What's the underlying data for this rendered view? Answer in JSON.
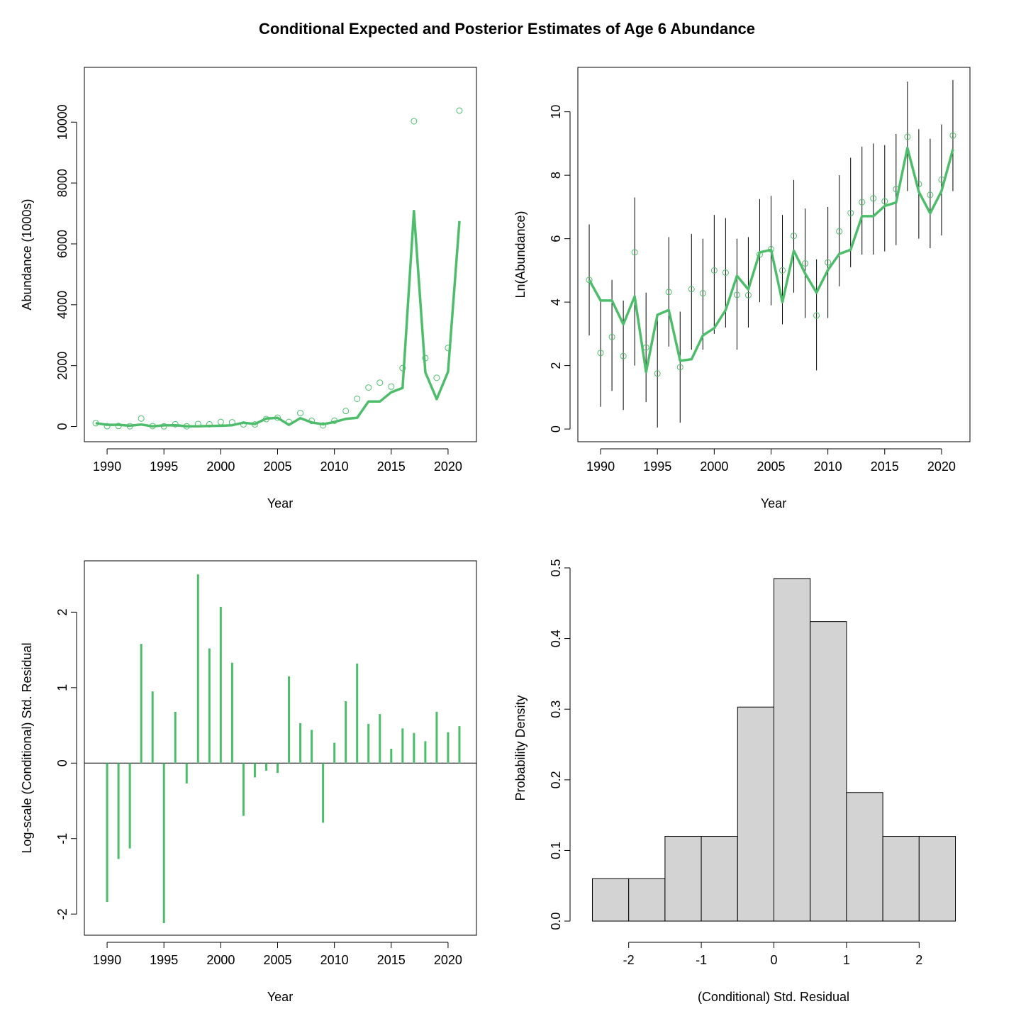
{
  "figure": {
    "title": "Conditional Expected and Posterior Estimates of Age 6 Abundance",
    "series_color": "#4ebd6b",
    "hist_fill": "#d3d3d3"
  },
  "chart_data": [
    {
      "type": "line",
      "xlabel": "Year",
      "ylabel": "Abundance (1000s)",
      "xlim": [
        1988,
        2022.5
      ],
      "ylim": [
        -500,
        11800
      ],
      "x_ticks": [
        1990,
        1995,
        2000,
        2005,
        2010,
        2015,
        2020
      ],
      "y_ticks": [
        0,
        2000,
        4000,
        6000,
        8000,
        10000
      ],
      "x": [
        1989,
        1990,
        1991,
        1992,
        1993,
        1994,
        1995,
        1996,
        1997,
        1998,
        1999,
        2000,
        2001,
        2002,
        2003,
        2004,
        2005,
        2006,
        2007,
        2008,
        2009,
        2010,
        2011,
        2012,
        2013,
        2014,
        2015,
        2016,
        2017,
        2018,
        2019,
        2020,
        2021
      ],
      "series": [
        {
          "name": "",
          "style": "line",
          "values": [
            110,
            57,
            57,
            27,
            65,
            6,
            37,
            42,
            9,
            9,
            19,
            24,
            42,
            125,
            82,
            262,
            284,
            55,
            275,
            134,
            73,
            150,
            251,
            285,
            822,
            822,
            1125,
            1265,
            7080,
            1780,
            900,
            1800,
            6750
          ]
        },
        {
          "name": "",
          "style": "points",
          "values": [
            110,
            11,
            18,
            10,
            262,
            13,
            6,
            75,
            7,
            82,
            72,
            148,
            138,
            69,
            68,
            245,
            290,
            149,
            442,
            186,
            36,
            190,
            510,
            910,
            1280,
            1440,
            1310,
            1920,
            10030,
            2250,
            1600,
            2580,
            10380
          ]
        }
      ]
    },
    {
      "type": "line",
      "xlabel": "Year",
      "ylabel": "Ln(Abundance)",
      "xlim": [
        1988,
        2022.5
      ],
      "ylim": [
        -0.4,
        11.4
      ],
      "x_ticks": [
        1990,
        1995,
        2000,
        2005,
        2010,
        2015,
        2020
      ],
      "y_ticks": [
        0,
        2,
        4,
        6,
        8,
        10
      ],
      "x": [
        1989,
        1990,
        1991,
        1992,
        1993,
        1994,
        1995,
        1996,
        1997,
        1998,
        1999,
        2000,
        2001,
        2002,
        2003,
        2004,
        2005,
        2006,
        2007,
        2008,
        2009,
        2010,
        2011,
        2012,
        2013,
        2014,
        2015,
        2016,
        2017,
        2018,
        2019,
        2020,
        2021
      ],
      "series": [
        {
          "name": "",
          "style": "line",
          "values": [
            4.7,
            4.05,
            4.05,
            3.3,
            4.18,
            1.8,
            3.6,
            3.75,
            2.15,
            2.2,
            2.95,
            3.18,
            3.75,
            4.83,
            4.4,
            5.57,
            5.65,
            4.0,
            5.62,
            4.9,
            4.3,
            5.01,
            5.52,
            5.65,
            6.71,
            6.71,
            7.03,
            7.14,
            8.86,
            7.48,
            6.8,
            7.5,
            8.82
          ]
        },
        {
          "name": "",
          "style": "points",
          "values": [
            4.7,
            2.4,
            2.9,
            2.3,
            5.57,
            2.57,
            1.75,
            4.32,
            1.95,
            4.41,
            4.28,
            5.0,
            4.93,
            4.23,
            4.22,
            5.5,
            5.67,
            5.0,
            6.09,
            5.22,
            3.58,
            5.25,
            6.23,
            6.81,
            7.15,
            7.27,
            7.18,
            7.56,
            9.21,
            7.72,
            7.38,
            7.86,
            9.25
          ]
        },
        {
          "name": "",
          "style": "errorbars",
          "lower": [
            2.95,
            0.7,
            1.2,
            0.6,
            2.0,
            0.85,
            0.05,
            2.6,
            0.2,
            2.5,
            2.5,
            3.0,
            3.2,
            2.5,
            3.2,
            4.0,
            3.9,
            3.3,
            4.3,
            3.5,
            1.85,
            3.5,
            4.5,
            5.1,
            5.5,
            5.5,
            5.6,
            5.8,
            7.5,
            6.0,
            5.7,
            6.1,
            7.5
          ],
          "upper": [
            6.45,
            4.1,
            4.7,
            4.05,
            7.3,
            4.3,
            3.5,
            6.05,
            3.7,
            6.15,
            6.0,
            6.75,
            6.65,
            6.0,
            6.05,
            7.25,
            7.35,
            6.75,
            7.85,
            6.95,
            5.35,
            7.0,
            8.0,
            8.55,
            8.9,
            9.0,
            8.95,
            9.3,
            10.95,
            9.45,
            9.15,
            9.6,
            11.0
          ]
        }
      ]
    },
    {
      "type": "bar",
      "xlabel": "Year",
      "ylabel": "Log-scale (Conditional) Std. Residual",
      "xlim": [
        1988,
        2022.5
      ],
      "ylim": [
        -2.28,
        2.68
      ],
      "x_ticks": [
        1990,
        1995,
        2000,
        2005,
        2010,
        2015,
        2020
      ],
      "y_ticks": [
        -2,
        -1,
        0,
        1,
        2
      ],
      "x": [
        1990,
        1991,
        1992,
        1993,
        1994,
        1995,
        1996,
        1997,
        1998,
        1999,
        2000,
        2001,
        2002,
        2003,
        2004,
        2005,
        2006,
        2007,
        2008,
        2009,
        2010,
        2011,
        2012,
        2013,
        2014,
        2015,
        2016,
        2017,
        2018,
        2019,
        2020,
        2021
      ],
      "values": [
        -1.84,
        -1.27,
        -1.13,
        1.58,
        0.95,
        -2.12,
        0.68,
        -0.27,
        2.5,
        1.52,
        2.07,
        1.33,
        -0.7,
        -0.19,
        -0.1,
        -0.13,
        1.15,
        0.53,
        0.44,
        -0.79,
        0.27,
        0.82,
        1.32,
        0.52,
        0.65,
        0.19,
        0.46,
        0.4,
        0.29,
        0.68,
        0.41,
        0.49
      ],
      "reference_line": 0
    },
    {
      "type": "bar",
      "subtype": "histogram",
      "xlabel": "(Conditional) Std. Residual",
      "ylabel": "Probability Density",
      "xlim": [
        -2.7,
        2.7
      ],
      "ylim": [
        -0.02,
        0.51
      ],
      "x_ticks": [
        -2,
        -1,
        0,
        1,
        2
      ],
      "y_ticks": [
        0.0,
        0.1,
        0.2,
        0.3,
        0.4,
        0.5
      ],
      "bin_edges": [
        -2.5,
        -2.0,
        -1.5,
        -1.0,
        -0.5,
        0.0,
        0.5,
        1.0,
        1.5,
        2.0,
        2.5
      ],
      "values": [
        0.06,
        0.06,
        0.12,
        0.12,
        0.303,
        0.485,
        0.424,
        0.182,
        0.12,
        0.12
      ]
    }
  ]
}
